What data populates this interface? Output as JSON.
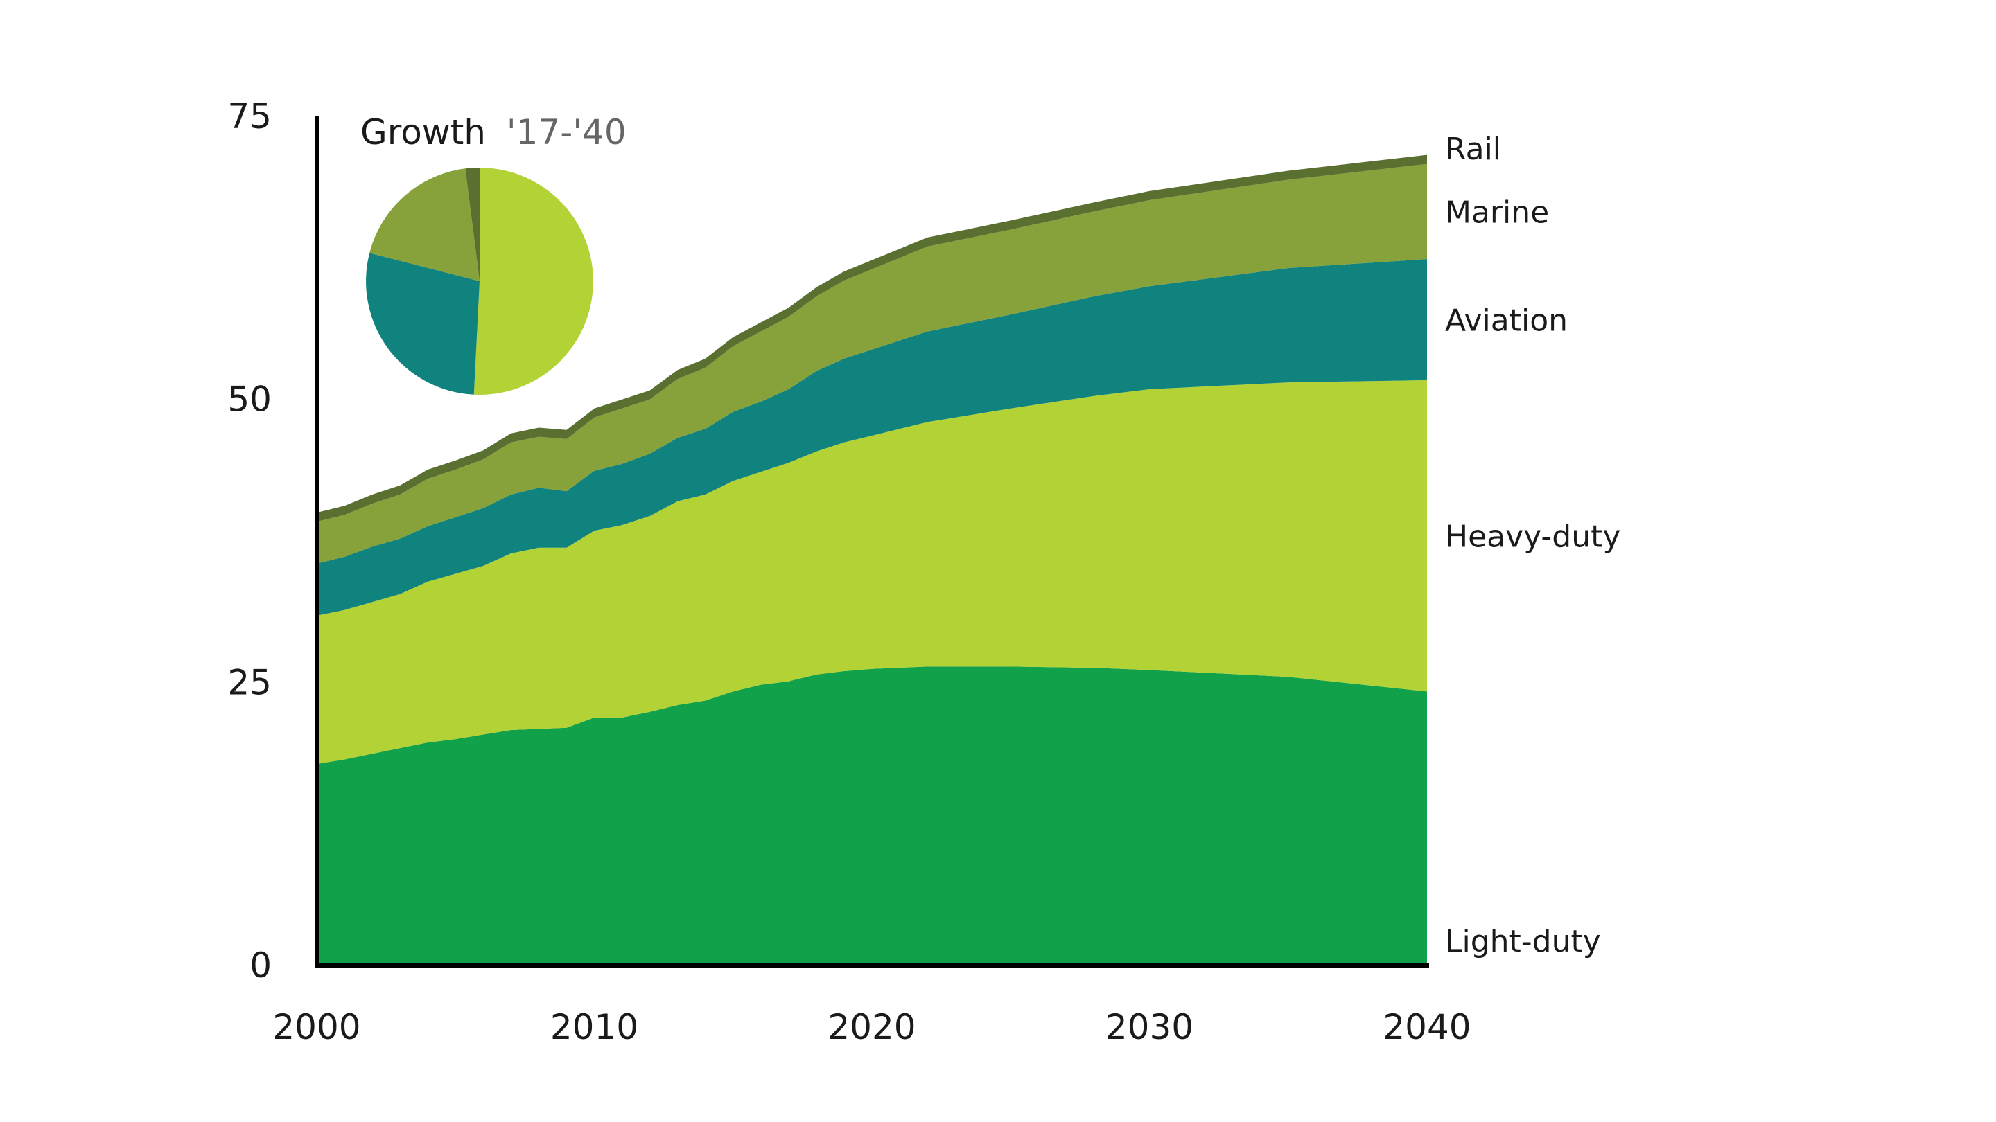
{
  "chart_data": {
    "type": "area",
    "stacked": true,
    "title": "",
    "xlabel": "",
    "ylabel": "",
    "xlim": [
      2000,
      2040
    ],
    "ylim": [
      0,
      75
    ],
    "x_ticks": [
      "2000",
      "2010",
      "2020",
      "2030",
      "2040"
    ],
    "y_ticks": [
      "0",
      "25",
      "50",
      "75"
    ],
    "grid": false,
    "legend": "direct labels at right end of series",
    "x": [
      2000,
      2001,
      2002,
      2003,
      2004,
      2005,
      2006,
      2007,
      2008,
      2009,
      2010,
      2011,
      2012,
      2013,
      2014,
      2015,
      2016,
      2017,
      2018,
      2019,
      2020,
      2022,
      2025,
      2028,
      2030,
      2035,
      2040
    ],
    "series": [
      {
        "name": "Light-duty",
        "color": "#12a14b",
        "values": [
          17.8,
          18.2,
          18.7,
          19.2,
          19.7,
          20.0,
          20.4,
          20.8,
          20.9,
          21.0,
          21.9,
          21.9,
          22.4,
          23.0,
          23.4,
          24.2,
          24.8,
          25.1,
          25.7,
          26.0,
          26.2,
          26.4,
          26.4,
          26.3,
          26.1,
          25.5,
          24.2
        ]
      },
      {
        "name": "Heavy-duty",
        "color": "#b2d235",
        "values": [
          13.1,
          13.2,
          13.4,
          13.6,
          14.2,
          14.6,
          14.9,
          15.6,
          16.0,
          15.9,
          16.5,
          17.0,
          17.3,
          18.0,
          18.2,
          18.6,
          18.8,
          19.3,
          19.7,
          20.2,
          20.6,
          21.6,
          22.8,
          24.0,
          24.8,
          26.0,
          27.5
        ]
      },
      {
        "name": "Aviation",
        "color": "#11837f",
        "values": [
          4.6,
          4.7,
          4.9,
          4.9,
          4.9,
          5.0,
          5.1,
          5.2,
          5.3,
          5.0,
          5.3,
          5.4,
          5.5,
          5.6,
          5.8,
          6.1,
          6.2,
          6.5,
          7.1,
          7.4,
          7.6,
          8.0,
          8.3,
          8.8,
          9.1,
          10.1,
          10.7
        ]
      },
      {
        "name": "Marine",
        "color": "#87a13b",
        "values": [
          3.7,
          3.7,
          3.8,
          3.9,
          4.2,
          4.2,
          4.3,
          4.6,
          4.5,
          4.6,
          4.7,
          4.9,
          4.8,
          5.2,
          5.4,
          5.8,
          6.2,
          6.4,
          6.6,
          6.9,
          7.1,
          7.5,
          7.5,
          7.5,
          7.6,
          7.8,
          8.4
        ]
      },
      {
        "name": "Rail",
        "color": "#5a7031",
        "values": [
          0.8,
          0.8,
          0.8,
          0.8,
          0.8,
          0.8,
          0.8,
          0.8,
          0.8,
          0.8,
          0.8,
          0.8,
          0.8,
          0.8,
          0.8,
          0.8,
          0.8,
          0.8,
          0.8,
          0.8,
          0.8,
          0.8,
          0.8,
          0.8,
          0.8,
          0.8,
          0.8
        ]
      }
    ],
    "inset": {
      "type": "pie",
      "title_prefix": "Growth",
      "title_suffix": "'17-'40",
      "slices": [
        {
          "series": "Heavy-duty",
          "share": 0.508,
          "color": "#b2d235"
        },
        {
          "series": "Aviation",
          "share": 0.282,
          "color": "#11837f"
        },
        {
          "series": "Marine",
          "share": 0.19,
          "color": "#87a13b"
        },
        {
          "series": "Rail",
          "share": 0.02,
          "color": "#5a7031"
        }
      ]
    }
  }
}
